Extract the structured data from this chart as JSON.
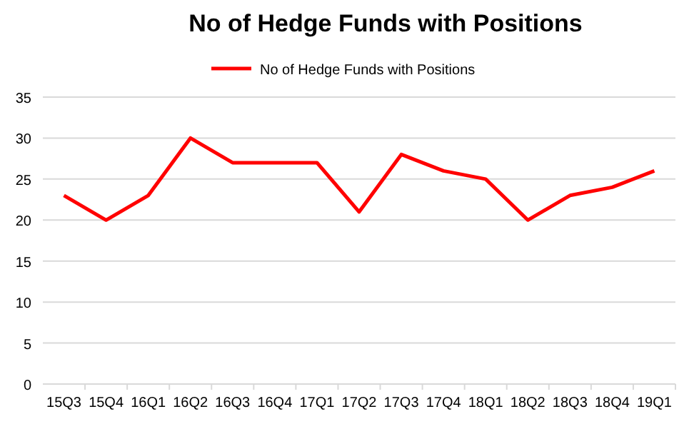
{
  "chart_data": {
    "type": "line",
    "title": "No of Hedge Funds with Positions",
    "categories": [
      "15Q3",
      "15Q4",
      "16Q1",
      "16Q2",
      "16Q3",
      "16Q4",
      "17Q1",
      "17Q2",
      "17Q3",
      "17Q4",
      "18Q1",
      "18Q2",
      "18Q3",
      "18Q4",
      "19Q1"
    ],
    "series": [
      {
        "name": "No of Hedge Funds with Positions",
        "color": "#ff0000",
        "values": [
          23,
          20,
          23,
          30,
          27,
          27,
          27,
          21,
          28,
          26,
          25,
          20,
          23,
          24,
          26
        ]
      }
    ],
    "ylim": [
      0,
      35
    ],
    "yticks": [
      0,
      5,
      10,
      15,
      20,
      25,
      30,
      35
    ],
    "grid": "y",
    "legend": "top",
    "marker": "none",
    "line_style": "solid"
  }
}
